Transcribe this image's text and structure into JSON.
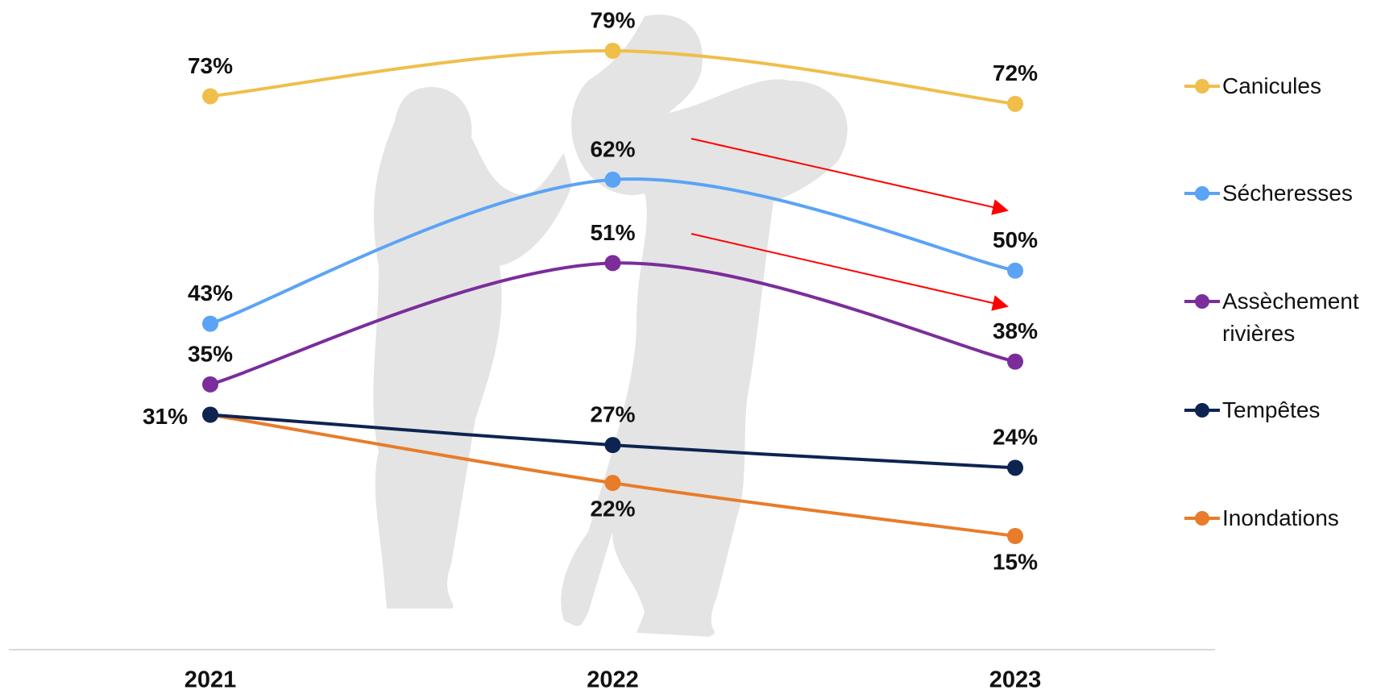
{
  "chart_data": {
    "type": "line",
    "categories": [
      "2021",
      "2022",
      "2023"
    ],
    "series": [
      {
        "name": "Canicules",
        "color": "#f0be4a",
        "values": [
          73,
          79,
          72
        ],
        "value_labels": [
          "73%",
          "79%",
          "72%"
        ]
      },
      {
        "name": "Sécheresses",
        "color": "#5ba3f5",
        "values": [
          43,
          62,
          50
        ],
        "value_labels": [
          "43%",
          "62%",
          "50%"
        ]
      },
      {
        "name": "Assèchement rivières",
        "color": "#7b2d9b",
        "values": [
          35,
          51,
          38
        ],
        "value_labels": [
          "35%",
          "51%",
          "38%"
        ]
      },
      {
        "name": "Tempêtes",
        "color": "#0d2451",
        "values": [
          31,
          27,
          24
        ],
        "value_labels": [
          "31%",
          "27%",
          "24%"
        ]
      },
      {
        "name": "Inondations",
        "color": "#e87c2a",
        "values": [
          31,
          22,
          15
        ],
        "value_labels": [
          null,
          "22%",
          "15%"
        ]
      }
    ],
    "smooth": true,
    "legend": "right"
  }
}
